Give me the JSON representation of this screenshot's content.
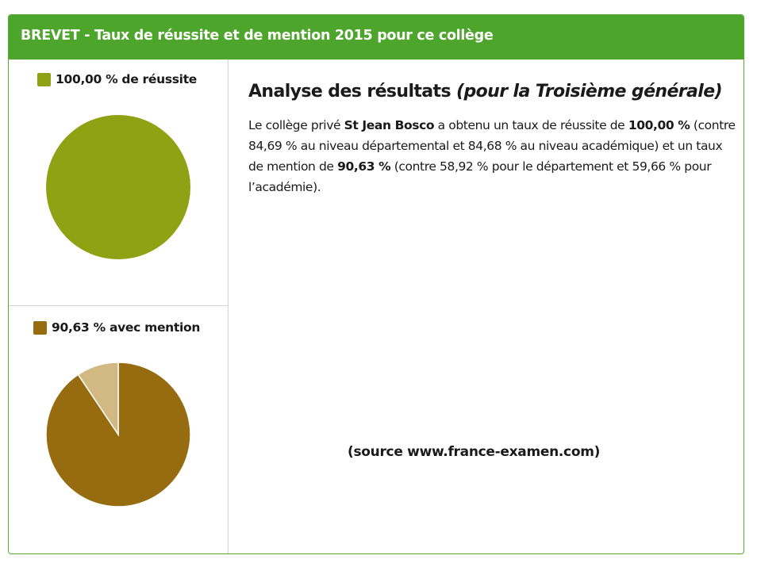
{
  "header": {
    "title": "BREVET - Taux de réussite et de mention 2015 pour ce collège"
  },
  "colors": {
    "header_bg": "#4ea52c",
    "reussite": "#8fa214",
    "mention": "#976b10",
    "sans_mention": "#d2b883"
  },
  "chart_data": [
    {
      "type": "pie",
      "legend": "100,00 % de réussite",
      "slices": [
        {
          "value": 100.0,
          "color": "#8fa214"
        }
      ]
    },
    {
      "type": "pie",
      "legend": "90,63 % avec mention",
      "slices": [
        {
          "value": 90.63,
          "color": "#976b10"
        },
        {
          "value": 9.37,
          "color": "#d2b883"
        }
      ]
    }
  ],
  "analysis": {
    "title": "Analyse des résultats",
    "subtitle": "(pour la Troisième générale)",
    "p1": "Le collège privé ",
    "school": "St Jean Bosco",
    "p2": " a obtenu un taux de réussite de ",
    "reussite": "100,00 %",
    "p3": " (contre 84,69 % au niveau départemental et 84,68 % au niveau académique) et un taux de mention de ",
    "mention": "90,63 %",
    "p4": " (contre 58,92 % pour le département et 59,66 % pour l’académie)."
  },
  "source": "(source www.france-examen.com)"
}
